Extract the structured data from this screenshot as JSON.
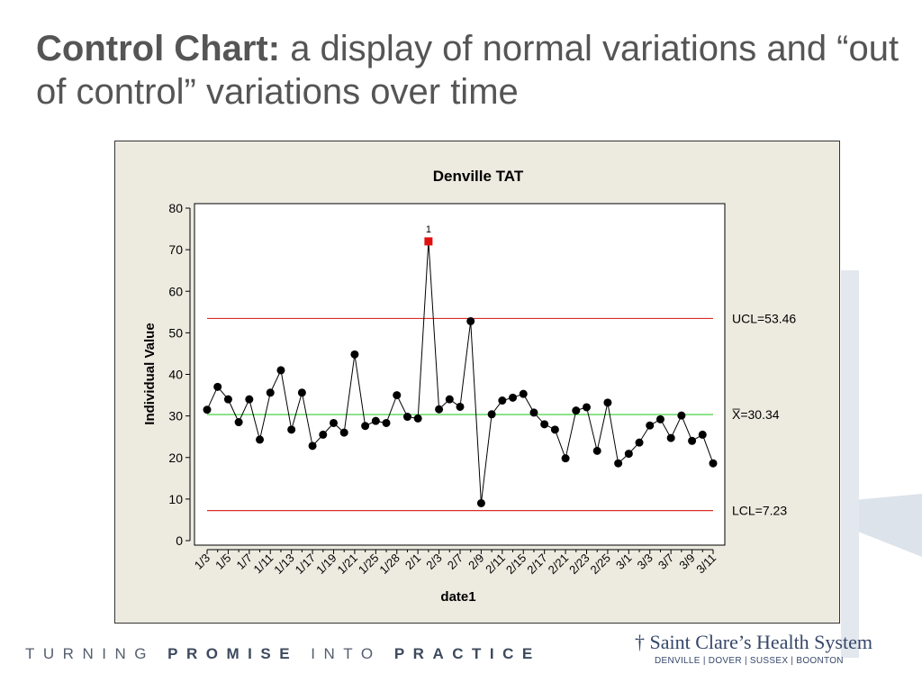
{
  "slide": {
    "title_bold": "Control Chart:",
    "title_rest": " a display of normal variations and “out of control” variations over time"
  },
  "footer": {
    "tag_1": "TURNING ",
    "tag_2": "PROMISE",
    "tag_3": " INTO ",
    "tag_4": "PRACTICE"
  },
  "logo": {
    "name": "† Saint Clare’s Health System",
    "locations": "DENVILLE | DOVER | SUSSEX | BOONTON"
  },
  "chart_data": {
    "type": "line",
    "title": "Denville TAT",
    "xlabel": "date1",
    "ylabel": "Individual Value",
    "ylim": [
      0,
      80
    ],
    "yticks": [
      0,
      10,
      20,
      30,
      40,
      50,
      60,
      70,
      80
    ],
    "xtick_labels": [
      "1/3",
      "1/5",
      "1/7",
      "1/11",
      "1/13",
      "1/17",
      "1/19",
      "1/21",
      "1/25",
      "1/28",
      "2/1",
      "2/3",
      "2/7",
      "2/9",
      "2/11",
      "2/15",
      "2/17",
      "2/21",
      "2/23",
      "2/25",
      "3/1",
      "3/3",
      "3/7",
      "3/9",
      "3/11"
    ],
    "values": [
      31.5,
      37,
      34,
      28.5,
      34,
      24.3,
      35.6,
      41,
      26.7,
      35.6,
      22.8,
      25.5,
      28.3,
      26,
      44.8,
      27.6,
      28.8,
      28.3,
      35,
      29.8,
      29.4,
      72,
      31.6,
      34,
      32.2,
      52.8,
      9,
      30.4,
      33.7,
      34.4,
      35.3,
      30.8,
      28,
      26.7,
      19.8,
      31.3,
      32.1,
      21.6,
      33.2,
      18.6,
      20.9,
      23.6,
      27.7,
      29.2,
      24.7,
      30.1,
      24,
      25.5,
      18.6
    ],
    "out_of_control": [
      {
        "index": 21,
        "label": "1"
      }
    ],
    "limits": [
      {
        "name": "UCL",
        "label": "UCL=53.46",
        "value": 53.46,
        "color": "#d9302a"
      },
      {
        "name": "mean",
        "label": "X̅=30.34",
        "value": 30.34,
        "color": "#33cc33"
      },
      {
        "name": "LCL",
        "label": "LCL=7.23",
        "value": 7.23,
        "color": "#d9302a"
      }
    ],
    "grid": false
  }
}
